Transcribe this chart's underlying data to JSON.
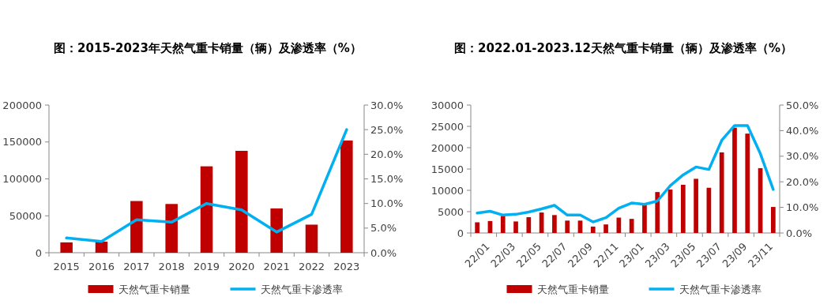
{
  "chart_data": [
    {
      "type": "bar",
      "title": "图：2015-2023年天然气重卡销量（辆）及渗透率（%）",
      "categories": [
        "2015",
        "2016",
        "2017",
        "2018",
        "2019",
        "2020",
        "2021",
        "2022",
        "2023"
      ],
      "series": [
        {
          "name": "天然气重卡销量",
          "color": "#c00000",
          "values": [
            14000,
            15000,
            70000,
            66000,
            117000,
            138000,
            60000,
            38000,
            152000
          ]
        },
        {
          "name": "天然气重卡渗透率",
          "type": "line",
          "axis": "y2",
          "color": "#00b0f0",
          "values": [
            3.0,
            2.3,
            6.7,
            6.2,
            10.0,
            8.7,
            4.2,
            7.8,
            25.0
          ]
        }
      ],
      "ylim": [
        0,
        200000
      ],
      "yticks": [
        0,
        50000,
        100000,
        150000,
        200000
      ],
      "y2lim": [
        0,
        30
      ],
      "y2ticks": [
        {
          "value": 0,
          "label": "0.0%"
        },
        {
          "value": 5,
          "label": "5.0%"
        },
        {
          "value": 10,
          "label": "10.0%"
        },
        {
          "value": 15,
          "label": "15.0%"
        },
        {
          "value": 20,
          "label": "20.0%"
        },
        {
          "value": 25,
          "label": "25.0%"
        },
        {
          "value": 30,
          "label": "30.0%"
        }
      ],
      "legend": "bottom"
    },
    {
      "type": "bar",
      "title": "图：2022.01-2023.12天然气重卡销量（辆）及渗透率（%）",
      "categories": [
        "22/01",
        null,
        "22/03",
        null,
        "22/05",
        null,
        "22/07",
        null,
        "22/09",
        null,
        "22/11",
        null,
        "23/01",
        null,
        "23/03",
        null,
        "23/05",
        null,
        "23/07",
        null,
        "23/09",
        null,
        "23/11",
        null
      ],
      "series": [
        {
          "name": "天然气重卡销量",
          "color": "#c00000",
          "values": [
            2500,
            2800,
            4000,
            2700,
            3700,
            4800,
            4200,
            2900,
            2900,
            1500,
            2000,
            3600,
            3300,
            6600,
            9600,
            10200,
            11300,
            12700,
            10600,
            18900,
            24700,
            23300,
            15200,
            6100
          ]
        },
        {
          "name": "天然气重卡渗透率",
          "type": "line",
          "axis": "y2",
          "color": "#00b0f0",
          "values": [
            7.8,
            8.5,
            7.0,
            7.3,
            8.2,
            9.4,
            10.8,
            7.0,
            7.0,
            4.3,
            6.0,
            9.7,
            11.7,
            11.2,
            12.5,
            18.5,
            22.7,
            25.8,
            24.8,
            36.2,
            42.0,
            42.0,
            31.0,
            17.0
          ]
        }
      ],
      "ylim": [
        0,
        30000
      ],
      "yticks": [
        0,
        5000,
        10000,
        15000,
        20000,
        25000,
        30000
      ],
      "y2lim": [
        0,
        50
      ],
      "y2ticks": [
        {
          "value": 0,
          "label": "0.0%"
        },
        {
          "value": 10,
          "label": "10.0%"
        },
        {
          "value": 20,
          "label": "20.0%"
        },
        {
          "value": 30,
          "label": "30.0%"
        },
        {
          "value": 40,
          "label": "40.0%"
        },
        {
          "value": 50,
          "label": "50.0%"
        }
      ],
      "legend": "bottom"
    }
  ]
}
